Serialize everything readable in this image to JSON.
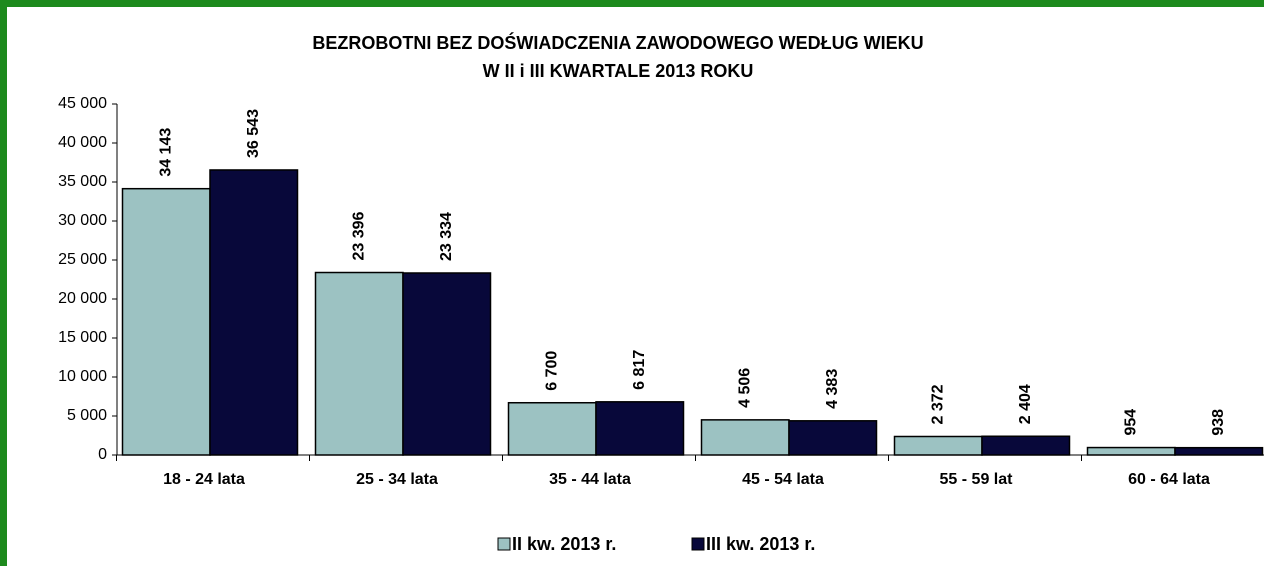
{
  "chart_data": {
    "type": "bar",
    "title": "BEZROBOTNI BEZ DOŚWIADCZENIA ZAWODOWEGO WEDŁUG  WIEKU",
    "subtitle": "W II i III KWARTALE 2013 ROKU",
    "categories": [
      "18 - 24 lata",
      "25 - 34 lata",
      "35 - 44 lata",
      "45 - 54 lata",
      "55 - 59 lat",
      "60 - 64 lata"
    ],
    "series": [
      {
        "name": "II kw. 2013 r.",
        "color": "#9cc2c2",
        "values": [
          34143,
          23396,
          6700,
          4506,
          2372,
          954
        ],
        "value_labels": [
          "34 143",
          "23 396",
          "6 700",
          "4 506",
          "2 372",
          "954"
        ]
      },
      {
        "name": "III kw. 2013 r.",
        "color": "#08083a",
        "values": [
          36543,
          23334,
          6817,
          4383,
          2404,
          938
        ],
        "value_labels": [
          "36 543",
          "23 334",
          "6 817",
          "4 383",
          "2 404",
          "938"
        ]
      }
    ],
    "ylim": [
      0,
      45000
    ],
    "yticks": [
      0,
      {
        "value": 5000,
        "label": "5 000"
      },
      {
        "value": 10000,
        "label": "10 000"
      },
      {
        "value": 15000,
        "label": "15 000"
      },
      {
        "value": 20000,
        "label": "20 000"
      },
      {
        "value": 25000,
        "label": "25 000"
      },
      {
        "value": 30000,
        "label": "30 000"
      },
      {
        "value": 35000,
        "label": "35 000"
      },
      {
        "value": 40000,
        "label": "40 000"
      },
      {
        "value": 45000,
        "label": "45 000"
      }
    ],
    "legend": "bottom"
  }
}
